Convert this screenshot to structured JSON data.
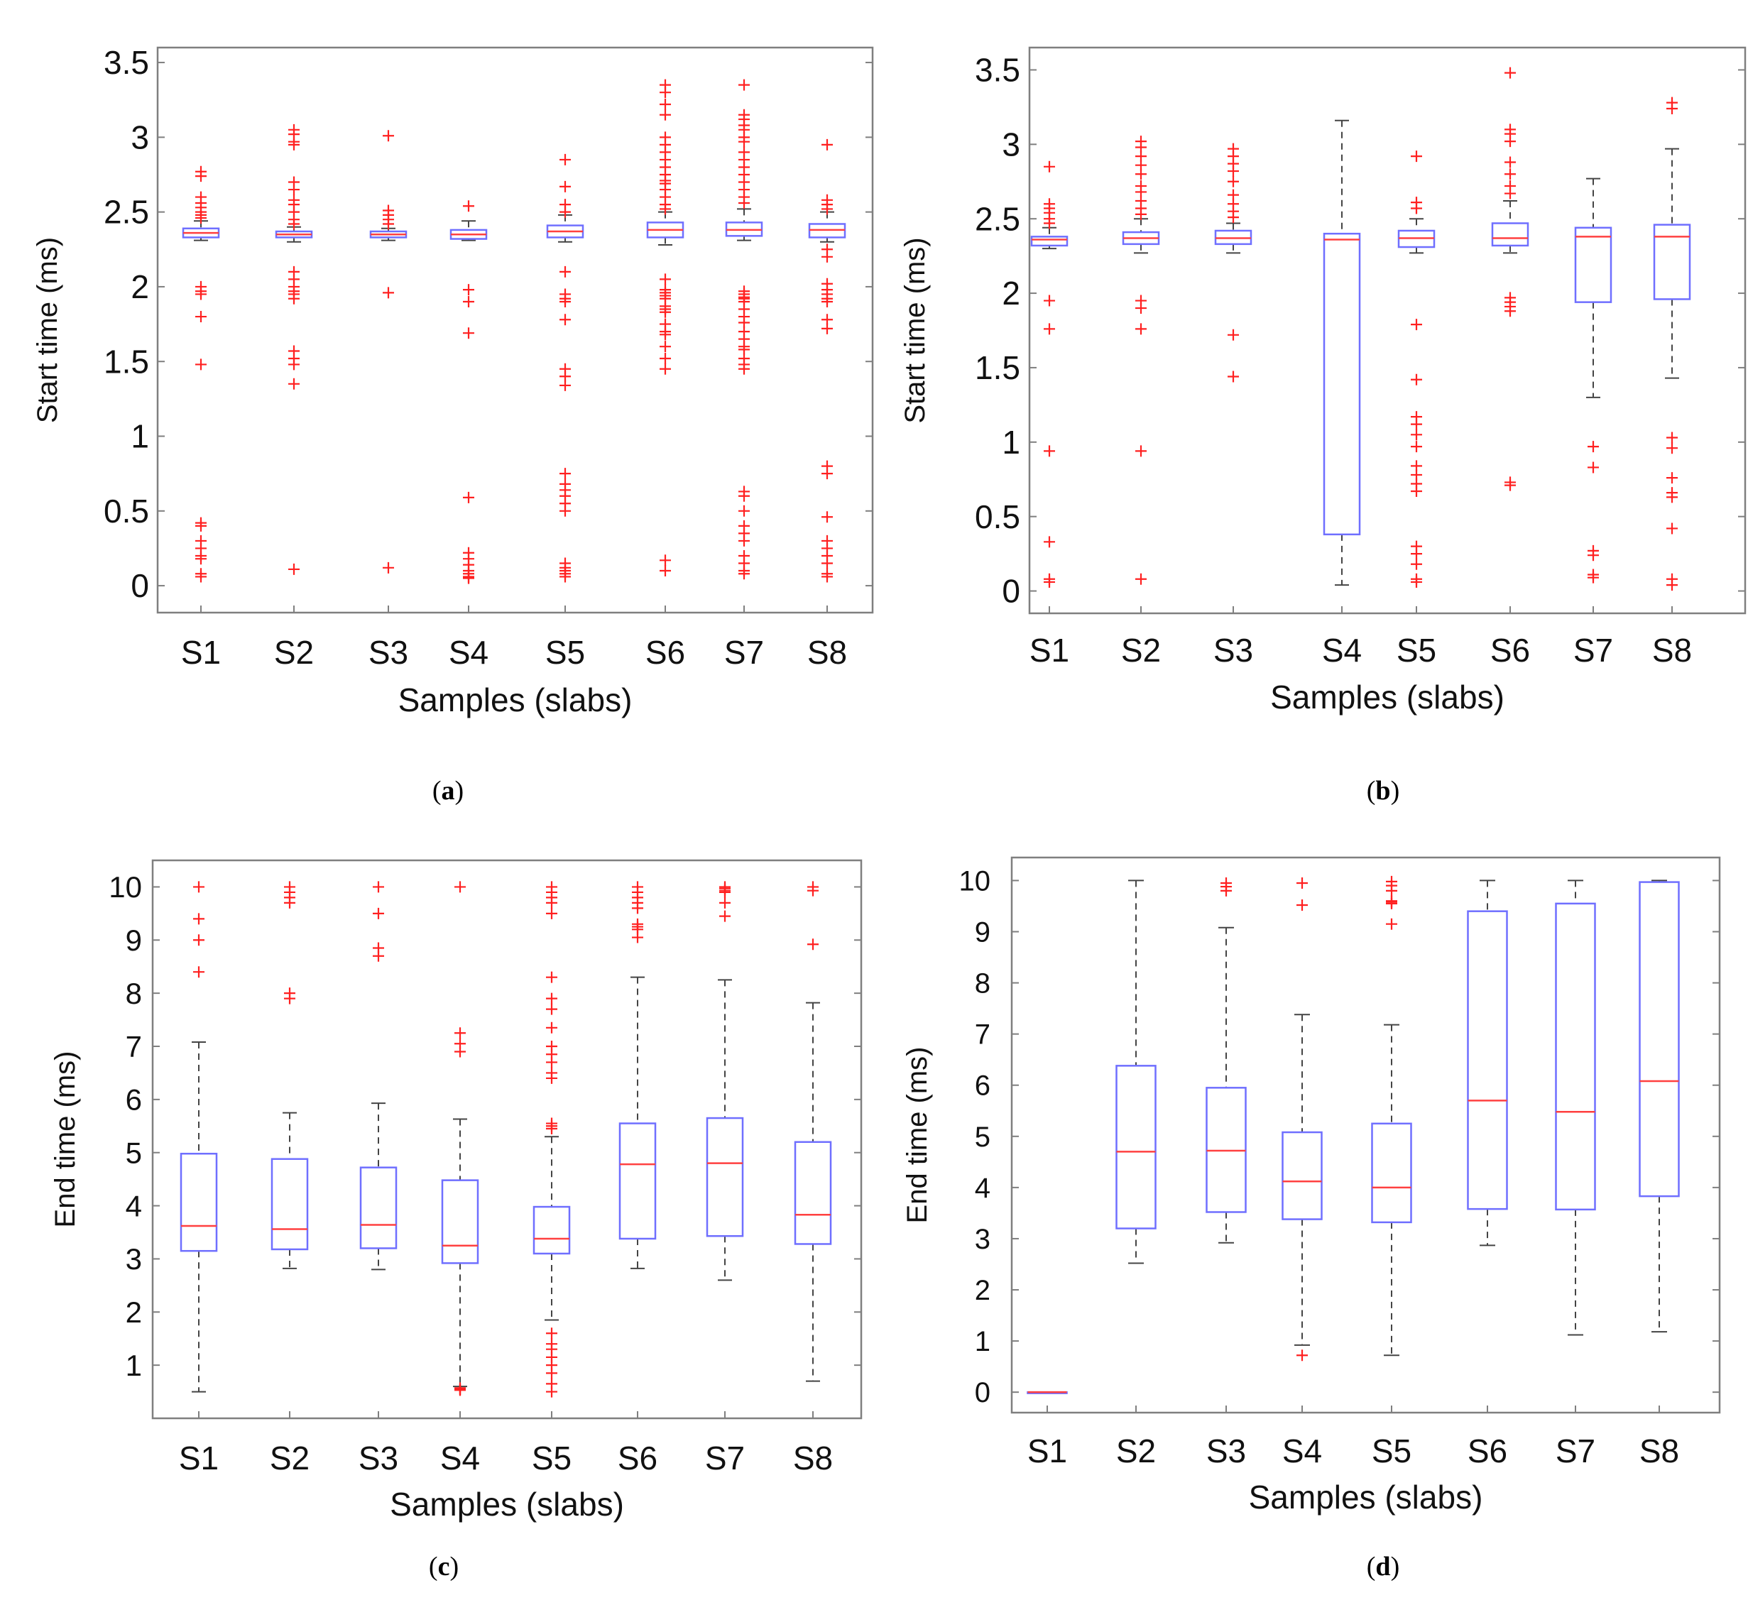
{
  "figure": {
    "captions": [
      "a",
      "b",
      "c",
      "d"
    ]
  },
  "colors": {
    "box": "#6f6fff",
    "median": "#ff4040",
    "whisker": "#444444",
    "outlier": "#ff2020",
    "frame": "#7f7f7f"
  },
  "chart_data": [
    {
      "id": "a",
      "type": "box",
      "title": "",
      "xlabel": "Samples (slabs)",
      "ylabel": "Start time (ms)",
      "categories": [
        "S1",
        "S2",
        "S3",
        "S4",
        "S5",
        "S6",
        "S7",
        "S8"
      ],
      "ylim": [
        -0.18,
        3.6
      ],
      "yticks": [
        0,
        0.5,
        1,
        1.5,
        2,
        2.5,
        3,
        3.5
      ],
      "ytick_labels": [
        "0",
        "0.5",
        "1",
        "1.5",
        "2",
        "2.5",
        "3",
        "3.5"
      ],
      "boxes": [
        {
          "q1": 2.33,
          "median": 2.36,
          "q3": 2.39,
          "wlo": 2.31,
          "whi": 2.44,
          "outliers": [
            2.77,
            2.74,
            2.6,
            2.56,
            2.53,
            2.5,
            2.48,
            2.46,
            2.0,
            1.97,
            1.95,
            1.8,
            1.48,
            0.42,
            0.4,
            0.3,
            0.25,
            0.2,
            0.18,
            0.08,
            0.06
          ]
        },
        {
          "q1": 2.33,
          "median": 2.35,
          "q3": 2.37,
          "wlo": 2.3,
          "whi": 2.4,
          "outliers": [
            3.05,
            3.02,
            2.97,
            2.95,
            2.7,
            2.65,
            2.58,
            2.55,
            2.5,
            2.45,
            2.42,
            2.1,
            2.05,
            2.0,
            1.97,
            1.95,
            1.92,
            1.57,
            1.52,
            1.48,
            1.35,
            0.11
          ]
        },
        {
          "q1": 2.33,
          "median": 2.35,
          "q3": 2.37,
          "wlo": 2.31,
          "whi": 2.39,
          "outliers": [
            3.01,
            2.51,
            2.48,
            2.45,
            2.42,
            1.96,
            0.12
          ]
        },
        {
          "q1": 2.32,
          "median": 2.35,
          "q3": 2.38,
          "wlo": 2.31,
          "whi": 2.44,
          "outliers": [
            2.54,
            1.98,
            1.9,
            1.69,
            0.59,
            0.22,
            0.18,
            0.14,
            0.1,
            0.08,
            0.06,
            0.05
          ]
        },
        {
          "q1": 2.33,
          "median": 2.37,
          "q3": 2.41,
          "wlo": 2.3,
          "whi": 2.48,
          "outliers": [
            2.85,
            2.67,
            2.55,
            2.5,
            2.1,
            1.95,
            1.92,
            1.9,
            1.78,
            1.45,
            1.4,
            1.34,
            0.75,
            0.68,
            0.64,
            0.6,
            0.55,
            0.5,
            0.15,
            0.12,
            0.1,
            0.08,
            0.06
          ]
        },
        {
          "q1": 2.33,
          "median": 2.38,
          "q3": 2.43,
          "wlo": 2.28,
          "whi": 2.5,
          "outliers": [
            3.35,
            3.3,
            3.22,
            3.15,
            3.0,
            2.95,
            2.9,
            2.85,
            2.8,
            2.75,
            2.71,
            2.69,
            2.65,
            2.6,
            2.55,
            2.52,
            2.05,
            1.98,
            1.96,
            1.94,
            1.92,
            1.87,
            1.85,
            1.83,
            1.75,
            1.7,
            1.68,
            1.6,
            1.52,
            1.45,
            0.17,
            0.1
          ]
        },
        {
          "q1": 2.34,
          "median": 2.38,
          "q3": 2.43,
          "wlo": 2.31,
          "whi": 2.52,
          "outliers": [
            3.35,
            3.15,
            3.12,
            3.08,
            3.05,
            3.0,
            2.97,
            2.9,
            2.85,
            2.8,
            2.75,
            2.7,
            2.65,
            2.6,
            2.56,
            1.97,
            1.95,
            1.93,
            1.92,
            1.9,
            1.85,
            1.8,
            1.76,
            1.7,
            1.65,
            1.6,
            1.58,
            1.52,
            1.48,
            1.45,
            0.63,
            0.6,
            0.5,
            0.4,
            0.35,
            0.3,
            0.2,
            0.15,
            0.1,
            0.08
          ]
        },
        {
          "q1": 2.33,
          "median": 2.38,
          "q3": 2.42,
          "wlo": 2.3,
          "whi": 2.5,
          "outliers": [
            2.95,
            2.58,
            2.55,
            2.52,
            2.25,
            2.2,
            2.02,
            1.98,
            1.95,
            1.92,
            1.9,
            1.78,
            1.72,
            0.8,
            0.75,
            0.46,
            0.3,
            0.25,
            0.2,
            0.15,
            0.08,
            0.06
          ]
        }
      ]
    },
    {
      "id": "b",
      "type": "box",
      "title": "",
      "xlabel": "Samples (slabs)",
      "ylabel": "Start time (ms)",
      "categories": [
        "S1",
        "S2",
        "S3",
        "S4",
        "S5",
        "S6",
        "S7",
        "S8"
      ],
      "ylim": [
        -0.15,
        3.65
      ],
      "yticks": [
        0,
        0.5,
        1,
        1.5,
        2,
        2.5,
        3,
        3.5
      ],
      "ytick_labels": [
        "0",
        "0.5",
        "1",
        "1.5",
        "2",
        "2.5",
        "3",
        "3.5"
      ],
      "boxes": [
        {
          "q1": 2.32,
          "median": 2.36,
          "q3": 2.38,
          "wlo": 2.3,
          "whi": 2.44,
          "outliers": [
            2.85,
            2.6,
            2.57,
            2.54,
            2.5,
            2.47,
            1.95,
            1.76,
            0.94,
            0.33,
            0.08,
            0.06
          ]
        },
        {
          "q1": 2.33,
          "median": 2.37,
          "q3": 2.41,
          "wlo": 2.27,
          "whi": 2.5,
          "outliers": [
            3.02,
            2.98,
            2.92,
            2.86,
            2.8,
            2.72,
            2.68,
            2.62,
            2.57,
            2.53,
            1.95,
            1.9,
            1.76,
            0.94,
            0.08
          ]
        },
        {
          "q1": 2.33,
          "median": 2.37,
          "q3": 2.42,
          "wlo": 2.27,
          "whi": 2.47,
          "outliers": [
            2.97,
            2.92,
            2.87,
            2.82,
            2.75,
            2.66,
            2.6,
            2.55,
            2.51,
            1.72,
            1.44
          ]
        },
        {
          "q1": 0.38,
          "median": 2.36,
          "q3": 2.4,
          "wlo": 0.04,
          "whi": 3.16,
          "outliers": []
        },
        {
          "q1": 2.31,
          "median": 2.37,
          "q3": 2.42,
          "wlo": 2.27,
          "whi": 2.5,
          "outliers": [
            2.92,
            2.61,
            2.57,
            1.79,
            1.42,
            1.17,
            1.12,
            1.05,
            0.97,
            0.84,
            0.78,
            0.72,
            0.67,
            0.3,
            0.25,
            0.18,
            0.08,
            0.06
          ]
        },
        {
          "q1": 2.32,
          "median": 2.37,
          "q3": 2.47,
          "wlo": 2.27,
          "whi": 2.62,
          "outliers": [
            3.48,
            3.1,
            3.07,
            3.02,
            2.88,
            2.8,
            2.72,
            2.67,
            1.97,
            1.94,
            1.91,
            1.88,
            0.73,
            0.71
          ]
        },
        {
          "q1": 1.94,
          "median": 2.38,
          "q3": 2.44,
          "wlo": 1.3,
          "whi": 2.77,
          "outliers": [
            0.97,
            0.83,
            0.27,
            0.24,
            0.11,
            0.09
          ]
        },
        {
          "q1": 1.96,
          "median": 2.38,
          "q3": 2.46,
          "wlo": 1.43,
          "whi": 2.97,
          "outliers": [
            3.28,
            3.24,
            1.03,
            0.96,
            0.76,
            0.66,
            0.63,
            0.42,
            0.08,
            0.04
          ]
        }
      ]
    },
    {
      "id": "c",
      "type": "box",
      "title": "",
      "xlabel": "Samples (slabs)",
      "ylabel": "End time (ms)",
      "categories": [
        "S1",
        "S2",
        "S3",
        "S4",
        "S5",
        "S6",
        "S7",
        "S8"
      ],
      "ylim": [
        0,
        10.5
      ],
      "yticks": [
        1,
        2,
        3,
        4,
        5,
        6,
        7,
        8,
        9,
        10
      ],
      "ytick_labels": [
        "1",
        "2",
        "3",
        "4",
        "5",
        "6",
        "7",
        "8",
        "9",
        "10"
      ],
      "boxes": [
        {
          "q1": 3.15,
          "median": 3.62,
          "q3": 4.98,
          "wlo": 0.5,
          "whi": 7.08,
          "outliers": [
            10.0,
            9.4,
            9.0,
            8.4
          ]
        },
        {
          "q1": 3.18,
          "median": 3.56,
          "q3": 4.88,
          "wlo": 2.82,
          "whi": 5.75,
          "outliers": [
            10.0,
            9.9,
            9.8,
            9.7,
            8.0,
            7.9
          ]
        },
        {
          "q1": 3.2,
          "median": 3.64,
          "q3": 4.72,
          "wlo": 2.8,
          "whi": 5.93,
          "outliers": [
            10.0,
            9.5,
            8.85,
            8.7
          ]
        },
        {
          "q1": 2.92,
          "median": 3.25,
          "q3": 4.48,
          "wlo": 0.6,
          "whi": 5.63,
          "outliers": [
            10.0,
            7.25,
            7.05,
            6.9,
            0.57,
            0.55,
            0.54,
            0.53
          ]
        },
        {
          "q1": 3.1,
          "median": 3.38,
          "q3": 3.98,
          "wlo": 1.85,
          "whi": 5.3,
          "outliers": [
            10.0,
            9.9,
            9.8,
            9.7,
            9.5,
            8.3,
            7.9,
            7.7,
            7.35,
            7.0,
            6.85,
            6.7,
            6.5,
            6.4,
            5.55,
            5.5,
            5.45,
            1.6,
            1.4,
            1.3,
            1.15,
            1.0,
            0.85,
            0.65,
            0.5
          ]
        },
        {
          "q1": 3.38,
          "median": 4.78,
          "q3": 5.55,
          "wlo": 2.82,
          "whi": 8.3,
          "outliers": [
            10.0,
            9.9,
            9.8,
            9.7,
            9.6,
            9.3,
            9.25,
            9.2,
            9.05
          ]
        },
        {
          "q1": 3.43,
          "median": 4.8,
          "q3": 5.65,
          "wlo": 2.6,
          "whi": 8.25,
          "outliers": [
            10.0,
            9.97,
            9.93,
            9.9,
            9.7,
            9.45
          ]
        },
        {
          "q1": 3.28,
          "median": 3.83,
          "q3": 5.2,
          "wlo": 0.7,
          "whi": 7.82,
          "outliers": [
            10.0,
            9.93,
            8.92
          ]
        }
      ]
    },
    {
      "id": "d",
      "type": "box",
      "title": "",
      "xlabel": "Samples (slabs)",
      "ylabel": "End time (ms)",
      "categories": [
        "S1",
        "S2",
        "S3",
        "S4",
        "S5",
        "S6",
        "S7",
        "S8"
      ],
      "ylim": [
        -0.4,
        10.45
      ],
      "yticks": [
        0,
        1,
        2,
        3,
        4,
        5,
        6,
        7,
        8,
        9,
        10
      ],
      "ytick_labels": [
        "0",
        "1",
        "2",
        "3",
        "4",
        "5",
        "6",
        "7",
        "8",
        "9",
        "10"
      ],
      "boxes": [
        {
          "q1": 0.0,
          "median": 0.0,
          "q3": 0.0,
          "wlo": 0.0,
          "whi": 0.0,
          "outliers": []
        },
        {
          "q1": 3.2,
          "median": 4.7,
          "q3": 6.38,
          "wlo": 2.52,
          "whi": 10.0,
          "outliers": []
        },
        {
          "q1": 3.52,
          "median": 4.72,
          "q3": 5.95,
          "wlo": 2.92,
          "whi": 9.08,
          "outliers": [
            9.95,
            9.88,
            9.8
          ]
        },
        {
          "q1": 3.38,
          "median": 4.12,
          "q3": 5.08,
          "wlo": 0.92,
          "whi": 7.38,
          "outliers": [
            9.95,
            9.52,
            0.72
          ]
        },
        {
          "q1": 3.32,
          "median": 4.0,
          "q3": 5.25,
          "wlo": 0.72,
          "whi": 7.18,
          "outliers": [
            9.98,
            9.9,
            9.8,
            9.6,
            9.58,
            9.55,
            9.15
          ]
        },
        {
          "q1": 3.58,
          "median": 5.7,
          "q3": 9.4,
          "wlo": 2.87,
          "whi": 10.0,
          "outliers": []
        },
        {
          "q1": 3.57,
          "median": 5.48,
          "q3": 9.55,
          "wlo": 1.12,
          "whi": 10.0,
          "outliers": []
        },
        {
          "q1": 3.83,
          "median": 6.08,
          "q3": 9.97,
          "wlo": 1.18,
          "whi": 10.0,
          "outliers": []
        }
      ]
    }
  ]
}
